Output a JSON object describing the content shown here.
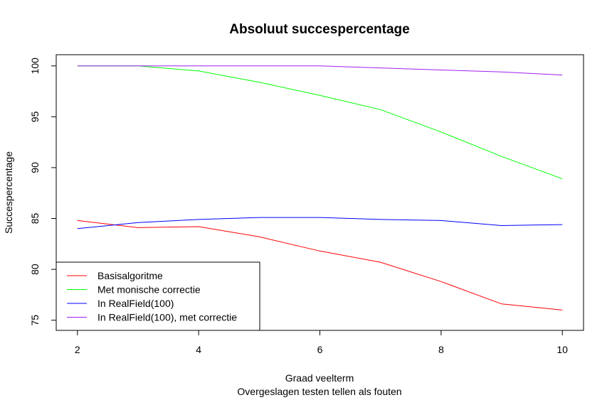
{
  "chart_data": {
    "type": "line",
    "title": "Absoluut succespercentage",
    "xlabel": "Graad veelterm",
    "subtitle": "Overgeslagen testen tellen als fouten",
    "ylabel": "Succespercentage",
    "x": [
      2,
      3,
      4,
      5,
      6,
      7,
      8,
      9,
      10
    ],
    "xlim": [
      1.65,
      10.35
    ],
    "ylim": [
      74.0,
      101.1
    ],
    "x_ticks": [
      2,
      4,
      6,
      8,
      10
    ],
    "y_ticks": [
      75,
      80,
      85,
      90,
      95,
      100
    ],
    "grid": false,
    "legend_position": "bottom-left",
    "series": [
      {
        "name": "Basisalgoritme",
        "color": "#ff0000",
        "values": [
          84.8,
          84.1,
          84.2,
          83.2,
          81.8,
          80.7,
          78.8,
          76.6,
          76.0
        ]
      },
      {
        "name": "Met monische correctie",
        "color": "#00ff00",
        "values": [
          100.0,
          100.0,
          99.5,
          98.4,
          97.1,
          95.7,
          93.5,
          91.1,
          88.9
        ]
      },
      {
        "name": "In RealField(100)",
        "color": "#0000ff",
        "values": [
          84.0,
          84.6,
          84.9,
          85.1,
          85.1,
          84.9,
          84.8,
          84.3,
          84.4
        ]
      },
      {
        "name": "In RealField(100), met correctie",
        "color": "#a020f0",
        "values": [
          100.0,
          100.0,
          100.0,
          100.0,
          100.0,
          99.8,
          99.6,
          99.4,
          99.1
        ]
      }
    ]
  }
}
